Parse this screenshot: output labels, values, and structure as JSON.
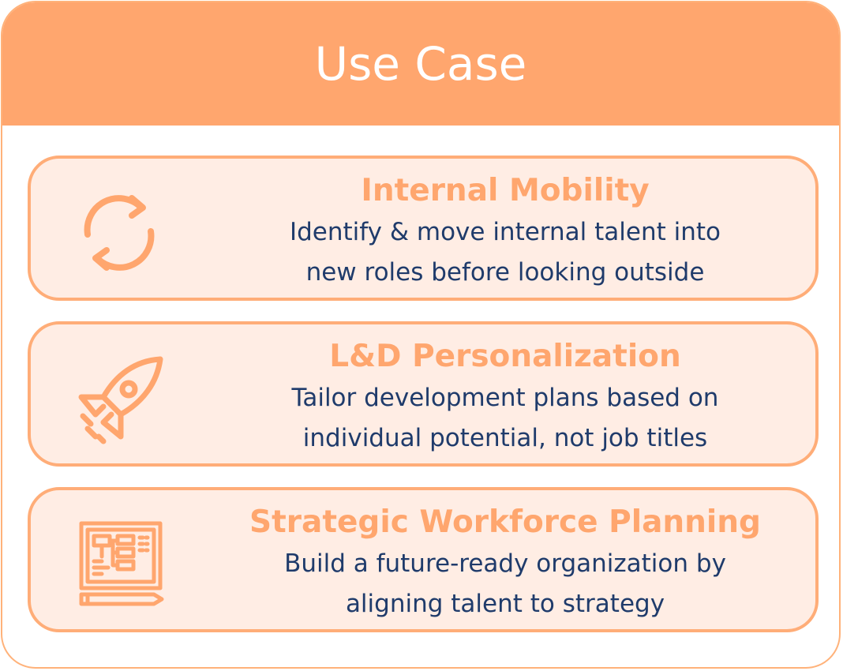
{
  "header": {
    "title": "Use Case"
  },
  "colors": {
    "accent": "#ffa66e",
    "panel_bg": "#ffede4",
    "text_dark": "#1f3b6b",
    "border": "#ffad78"
  },
  "items": [
    {
      "title": "Internal Mobility",
      "desc_line1": "Identify & move internal talent into",
      "desc_line2": "new roles before looking outside",
      "icon": "refresh-cycle-icon"
    },
    {
      "title": "L&D Personalization",
      "desc_line1": "Tailor development plans based on",
      "desc_line2": "individual potential, not job titles",
      "icon": "rocket-icon"
    },
    {
      "title": "Strategic Workforce Planning",
      "desc_line1": "Build a future-ready organization by",
      "desc_line2": "aligning talent to strategy",
      "icon": "blueprint-plan-icon"
    }
  ]
}
